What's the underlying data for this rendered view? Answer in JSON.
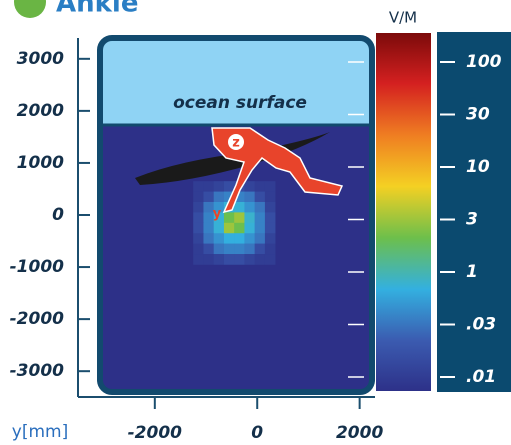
{
  "chart_data": {
    "type": "heatmap",
    "title": "Ankle",
    "annotation": "ocean surface",
    "axis_labels": {
      "x": "y[mm]",
      "z": "z",
      "y": "y"
    },
    "colorbar_label": "V/M",
    "xlim": [
      -3500,
      2300
    ],
    "ylim": [
      -3400,
      3400
    ],
    "xticks": [
      -2000,
      0,
      2000
    ],
    "yticks": [
      3000,
      2000,
      1000,
      0,
      -1000,
      -2000,
      -3000
    ],
    "cticks": [
      100,
      30,
      10,
      3,
      1,
      {
        "value": 0.03,
        "label": ".03"
      },
      {
        "value": 0.01,
        "label": ".01"
      }
    ],
    "colormap": [
      "#7a0a0a",
      "#d42020",
      "#ef7d22",
      "#f4d023",
      "#6dbf4b",
      "#33b0e0",
      "#3b5bb0",
      "#2d3088"
    ],
    "field": {
      "x": [
        -1150,
        -950,
        -750,
        -550,
        -350,
        -150,
        50,
        250
      ],
      "y": [
        550,
        350,
        150,
        -50,
        -250,
        -450,
        -650,
        -850
      ],
      "values": [
        [
          0.01,
          0.01,
          0.012,
          0.015,
          0.015,
          0.012,
          0.01,
          0.01
        ],
        [
          0.01,
          0.015,
          0.03,
          0.05,
          0.05,
          0.03,
          0.015,
          0.01
        ],
        [
          0.012,
          0.03,
          0.1,
          0.4,
          0.4,
          0.1,
          0.03,
          0.012
        ],
        [
          0.015,
          0.05,
          0.4,
          2,
          3,
          0.5,
          0.05,
          0.015
        ],
        [
          0.015,
          0.05,
          0.4,
          3,
          2,
          0.4,
          0.05,
          0.015
        ],
        [
          0.012,
          0.03,
          0.1,
          0.3,
          0.3,
          0.1,
          0.03,
          0.012
        ],
        [
          0.01,
          0.015,
          0.03,
          0.05,
          0.05,
          0.03,
          0.015,
          0.01
        ],
        [
          0.01,
          0.01,
          0.012,
          0.015,
          0.015,
          0.012,
          0.01,
          0.01
        ]
      ]
    }
  }
}
